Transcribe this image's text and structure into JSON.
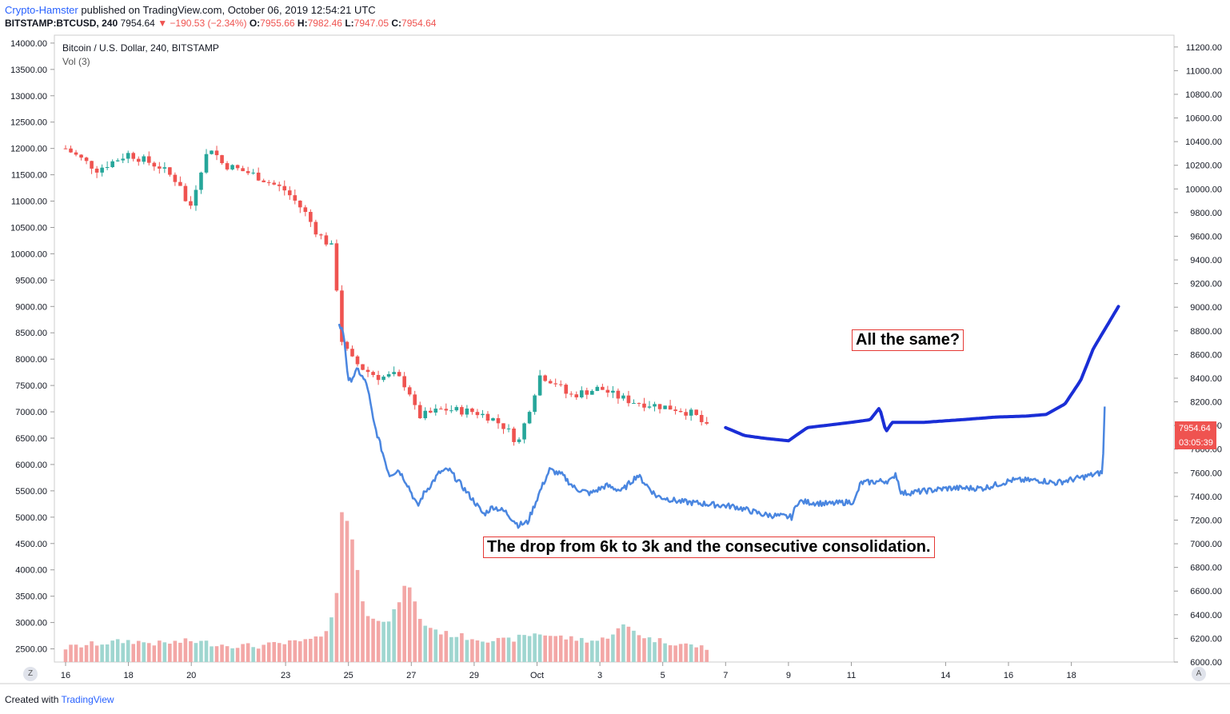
{
  "header": {
    "author": "Crypto-Hamster",
    "published": "published on TradingView.com, October 06, 2019 12:54:21 UTC",
    "symbol": "BITSTAMP:BTCUSD, 240",
    "last": "7954.64",
    "change": "▼ −190.53 (−2.34%)",
    "o_label": "O:",
    "o_value": "7955.66",
    "h_label": "H:",
    "h_value": "7982.46",
    "l_label": "L:",
    "l_value": "7947.05",
    "c_label": "C:",
    "c_value": "7954.64"
  },
  "legend": {
    "title": "Bitcoin / U.S. Dollar, 240, BITSTAMP",
    "vol": "Vol (3)"
  },
  "annotations": {
    "a1": "All the same?",
    "a2": "The drop from 6k to 3k and the consecutive consolidation."
  },
  "footer": {
    "created": "Created with",
    "brand": "TradingView"
  },
  "corner_left": "Z",
  "corner_right": "A",
  "price_badge": {
    "price": "7954.64",
    "time": "03:05:39"
  },
  "colors": {
    "up": "#26a69a",
    "down": "#ef5350",
    "overlay": "#4a86e0",
    "projection": "#1a2ed6"
  },
  "chart_data": {
    "type": "candlestick",
    "left_axis": {
      "ylim": [
        2250,
        14150
      ],
      "ticks": [
        "14000.00",
        "13500.00",
        "13000.00",
        "12500.00",
        "12000.00",
        "11500.00",
        "11000.00",
        "10500.00",
        "10000.00",
        "9500.00",
        "9000.00",
        "8500.00",
        "8000.00",
        "7500.00",
        "7000.00",
        "6500.00",
        "6000.00",
        "5500.00",
        "5000.00",
        "4500.00",
        "4000.00",
        "3500.00",
        "3000.00",
        "2500.00"
      ]
    },
    "right_axis": {
      "ylim": [
        6000,
        11300
      ],
      "ticks": [
        "11200.00",
        "11000.00",
        "10800.00",
        "10600.00",
        "10400.00",
        "10200.00",
        "10000.00",
        "9800.00",
        "9600.00",
        "9400.00",
        "9200.00",
        "9000.00",
        "8800.00",
        "8600.00",
        "8400.00",
        "8200.00",
        "8000.00",
        "7800.00",
        "7600.00",
        "7400.00",
        "7200.00",
        "7000.00",
        "6800.00",
        "6600.00",
        "6400.00",
        "6200.00",
        "6000.00"
      ]
    },
    "x_ticks": [
      {
        "label": "16",
        "day": 0
      },
      {
        "label": "18",
        "day": 2
      },
      {
        "label": "20",
        "day": 4
      },
      {
        "label": "23",
        "day": 7
      },
      {
        "label": "25",
        "day": 9
      },
      {
        "label": "27",
        "day": 11
      },
      {
        "label": "29",
        "day": 13
      },
      {
        "label": "Oct",
        "day": 15
      },
      {
        "label": "3",
        "day": 17
      },
      {
        "label": "5",
        "day": 19
      },
      {
        "label": "7",
        "day": 21
      },
      {
        "label": "9",
        "day": 23
      },
      {
        "label": "11",
        "day": 25
      },
      {
        "label": "14",
        "day": 28
      },
      {
        "label": "16",
        "day": 30
      },
      {
        "label": "18",
        "day": 32
      }
    ],
    "candle_keypoints": [
      [
        0,
        12000
      ],
      [
        1,
        11600
      ],
      [
        2,
        11900
      ],
      [
        3,
        11650
      ],
      [
        3.7,
        11300
      ],
      [
        3.9,
        10750
      ],
      [
        4.3,
        11600
      ],
      [
        4.6,
        12050
      ],
      [
        5,
        11700
      ],
      [
        6,
        11500
      ],
      [
        7,
        11200
      ],
      [
        7.6,
        10800
      ],
      [
        8,
        10400
      ],
      [
        8.5,
        10100
      ],
      [
        8.8,
        8300
      ],
      [
        9.1,
        8000
      ],
      [
        9.5,
        7800
      ],
      [
        10,
        7650
      ],
      [
        10.5,
        7700
      ],
      [
        10.9,
        7450
      ],
      [
        11.2,
        6900
      ],
      [
        12,
        7050
      ],
      [
        13,
        7000
      ],
      [
        13.5,
        6900
      ],
      [
        14,
        6700
      ],
      [
        14.4,
        6400
      ],
      [
        14.8,
        7150
      ],
      [
        15.1,
        7700
      ],
      [
        15.6,
        7550
      ],
      [
        16,
        7300
      ],
      [
        17,
        7450
      ],
      [
        17.5,
        7300
      ],
      [
        18,
        7200
      ],
      [
        19,
        7100
      ],
      [
        19.5,
        7050
      ],
      [
        20,
        6950
      ],
      [
        20.4,
        6700
      ]
    ],
    "volume_keypoints": [
      [
        0,
        2520
      ],
      [
        1,
        2600
      ],
      [
        2,
        2650
      ],
      [
        3,
        2600
      ],
      [
        4,
        2650
      ],
      [
        5,
        2580
      ],
      [
        6,
        2550
      ],
      [
        7,
        2600
      ],
      [
        8,
        2680
      ],
      [
        8.3,
        2900
      ],
      [
        8.6,
        3300
      ],
      [
        8.8,
        5200
      ],
      [
        9.1,
        4700
      ],
      [
        9.5,
        3200
      ],
      [
        10.3,
        3000
      ],
      [
        10.9,
        3800
      ],
      [
        11.3,
        3000
      ],
      [
        12,
        2800
      ],
      [
        13,
        2700
      ],
      [
        14,
        2650
      ],
      [
        15,
        2800
      ],
      [
        16,
        2700
      ],
      [
        17,
        2650
      ],
      [
        17.8,
        2950
      ],
      [
        18.5,
        2700
      ],
      [
        19.5,
        2600
      ],
      [
        20.4,
        2520
      ]
    ],
    "overlay_keypoints": [
      [
        8.7,
        8650
      ],
      [
        8.85,
        8500
      ],
      [
        9.0,
        7550
      ],
      [
        9.3,
        7800
      ],
      [
        9.6,
        7500
      ],
      [
        9.8,
        6800
      ],
      [
        10.1,
        6200
      ],
      [
        10.3,
        5800
      ],
      [
        10.6,
        5900
      ],
      [
        10.9,
        5600
      ],
      [
        11.2,
        5200
      ],
      [
        11.4,
        5450
      ],
      [
        11.6,
        5600
      ],
      [
        11.9,
        5850
      ],
      [
        12.2,
        5900
      ],
      [
        12.6,
        5600
      ],
      [
        13,
        5300
      ],
      [
        13.3,
        5050
      ],
      [
        13.6,
        5200
      ],
      [
        14,
        5100
      ],
      [
        14.4,
        4850
      ],
      [
        14.7,
        4900
      ],
      [
        15.1,
        5500
      ],
      [
        15.4,
        5900
      ],
      [
        15.8,
        5800
      ],
      [
        16.2,
        5550
      ],
      [
        16.7,
        5450
      ],
      [
        17.2,
        5600
      ],
      [
        17.7,
        5500
      ],
      [
        18.2,
        5800
      ],
      [
        18.8,
        5400
      ],
      [
        19.5,
        5300
      ],
      [
        20.4,
        5250
      ],
      [
        21.3,
        5200
      ],
      [
        22.2,
        5050
      ],
      [
        23.1,
        5000
      ],
      [
        23.3,
        5300
      ],
      [
        24.3,
        5250
      ],
      [
        25.1,
        5300
      ],
      [
        25.3,
        5650
      ],
      [
        26.3,
        5700
      ],
      [
        26.4,
        5850
      ],
      [
        26.6,
        5450
      ],
      [
        27.4,
        5500
      ],
      [
        28.1,
        5550
      ],
      [
        29.2,
        5550
      ],
      [
        30.1,
        5700
      ],
      [
        31.0,
        5700
      ],
      [
        31.5,
        5650
      ],
      [
        32.3,
        5750
      ],
      [
        33.0,
        5850
      ],
      [
        33.06,
        7100
      ]
    ],
    "projection_keypoints": [
      [
        21.0,
        6700
      ],
      [
        21.6,
        6550
      ],
      [
        22.2,
        6500
      ],
      [
        23.0,
        6450
      ],
      [
        23.6,
        6700
      ],
      [
        24.3,
        6750
      ],
      [
        25.0,
        6800
      ],
      [
        25.6,
        6850
      ],
      [
        25.9,
        7080
      ],
      [
        26.1,
        6620
      ],
      [
        26.3,
        6800
      ],
      [
        27.3,
        6800
      ],
      [
        28.5,
        6850
      ],
      [
        29.6,
        6900
      ],
      [
        30.6,
        6920
      ],
      [
        31.2,
        6950
      ],
      [
        31.8,
        7150
      ],
      [
        32.3,
        7600
      ],
      [
        32.7,
        8200
      ],
      [
        33.5,
        9000
      ]
    ]
  }
}
